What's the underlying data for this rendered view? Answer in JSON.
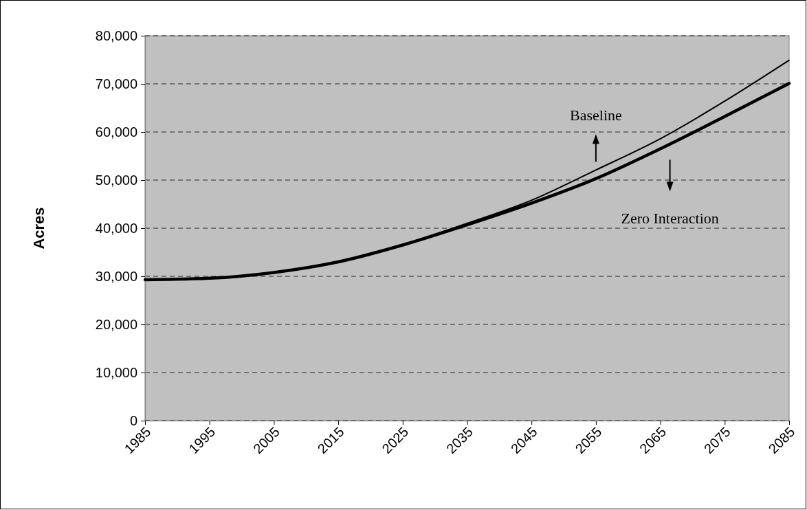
{
  "chart_data": {
    "type": "line",
    "ylabel": "Acres",
    "x": [
      1985,
      1995,
      2005,
      2015,
      2025,
      2035,
      2045,
      2055,
      2065,
      2075,
      2085
    ],
    "series": [
      {
        "name": "Baseline",
        "color": "#000000",
        "values": [
          29300,
          29600,
          30800,
          33000,
          36600,
          41000,
          45800,
          52100,
          58600,
          66400,
          74900
        ]
      },
      {
        "name": "Zero Interaction",
        "color": "#000000",
        "values": [
          29300,
          29600,
          30800,
          33000,
          36500,
          40700,
          45200,
          50300,
          56500,
          63200,
          70100
        ]
      }
    ],
    "xlim": [
      1985,
      2085
    ],
    "xticks": [
      1985,
      1995,
      2005,
      2015,
      2025,
      2035,
      2045,
      2055,
      2065,
      2075,
      2085
    ],
    "ylim": [
      0,
      80000
    ],
    "yticks": [
      {
        "value": 0,
        "label": "0"
      },
      {
        "value": 10000,
        "label": "10,000"
      },
      {
        "value": 20000,
        "label": "20,000"
      },
      {
        "value": 30000,
        "label": "30,000"
      },
      {
        "value": 40000,
        "label": "40,000"
      },
      {
        "value": 50000,
        "label": "50,000"
      },
      {
        "value": 60000,
        "label": "60,000"
      },
      {
        "value": 70000,
        "label": "70,000"
      },
      {
        "value": 80000,
        "label": "80,000"
      }
    ],
    "grid": "y",
    "legend": "right",
    "marker": "none",
    "line_style": "solid"
  }
}
